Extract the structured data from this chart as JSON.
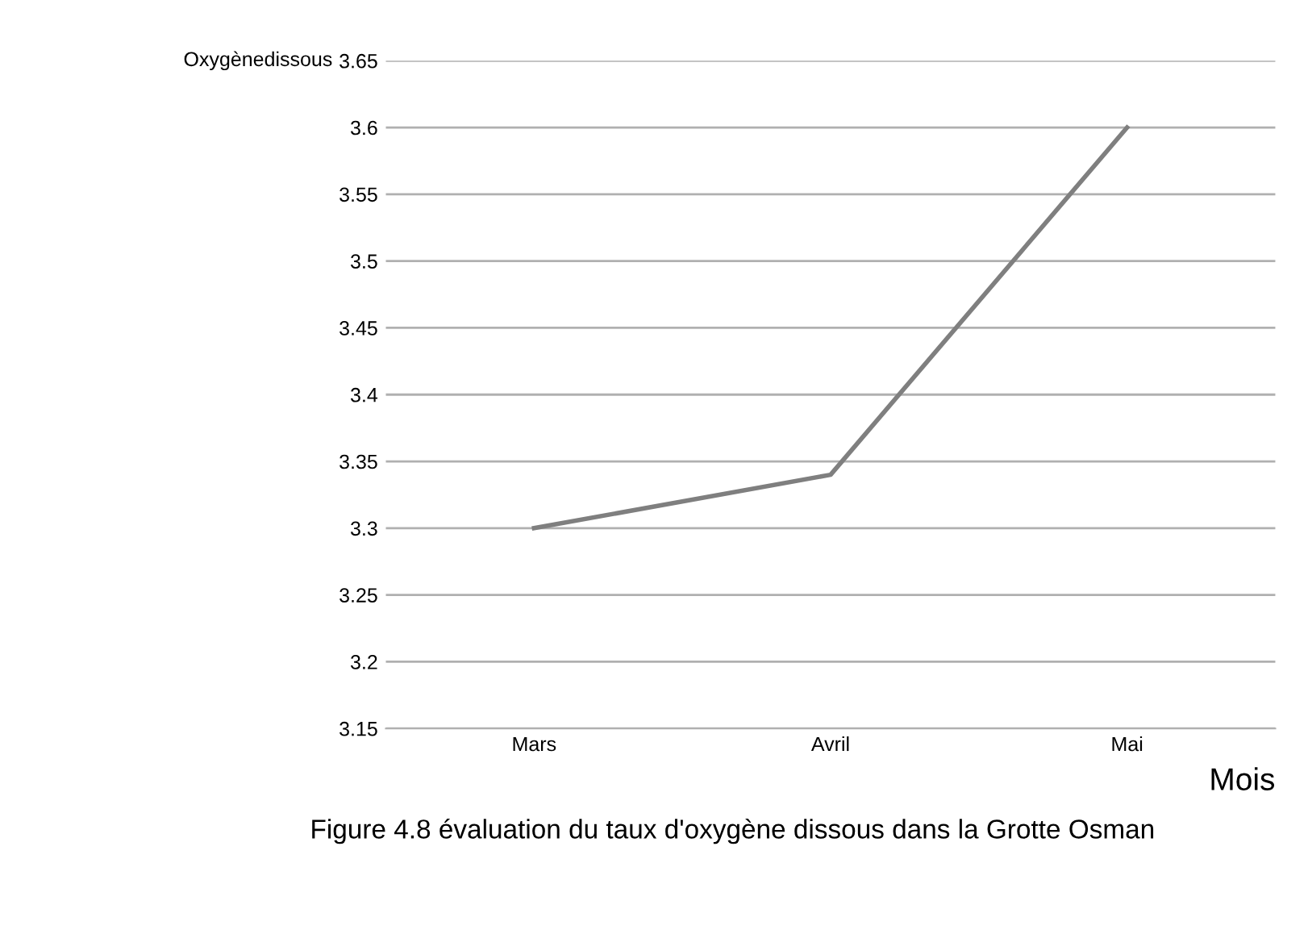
{
  "chart_data": {
    "type": "line",
    "ylabel": "Oxygènedissous",
    "xlabel": "Mois",
    "categories": [
      "Mars",
      "Avril",
      "Mai"
    ],
    "series": [
      {
        "color": "#7f7f7f",
        "values": [
          3.3,
          3.34,
          3.6
        ]
      }
    ],
    "ylim": [
      3.15,
      3.65
    ],
    "yticks": [
      3.15,
      3.2,
      3.25,
      3.3,
      3.35,
      3.4,
      3.45,
      3.5,
      3.55,
      3.6,
      3.65
    ],
    "grid": "y",
    "marker": "none",
    "line_style": "solid",
    "annotations": [
      "Figure 4.8 évaluation du taux d'oxygène dissous dans la Grotte Osman"
    ]
  }
}
